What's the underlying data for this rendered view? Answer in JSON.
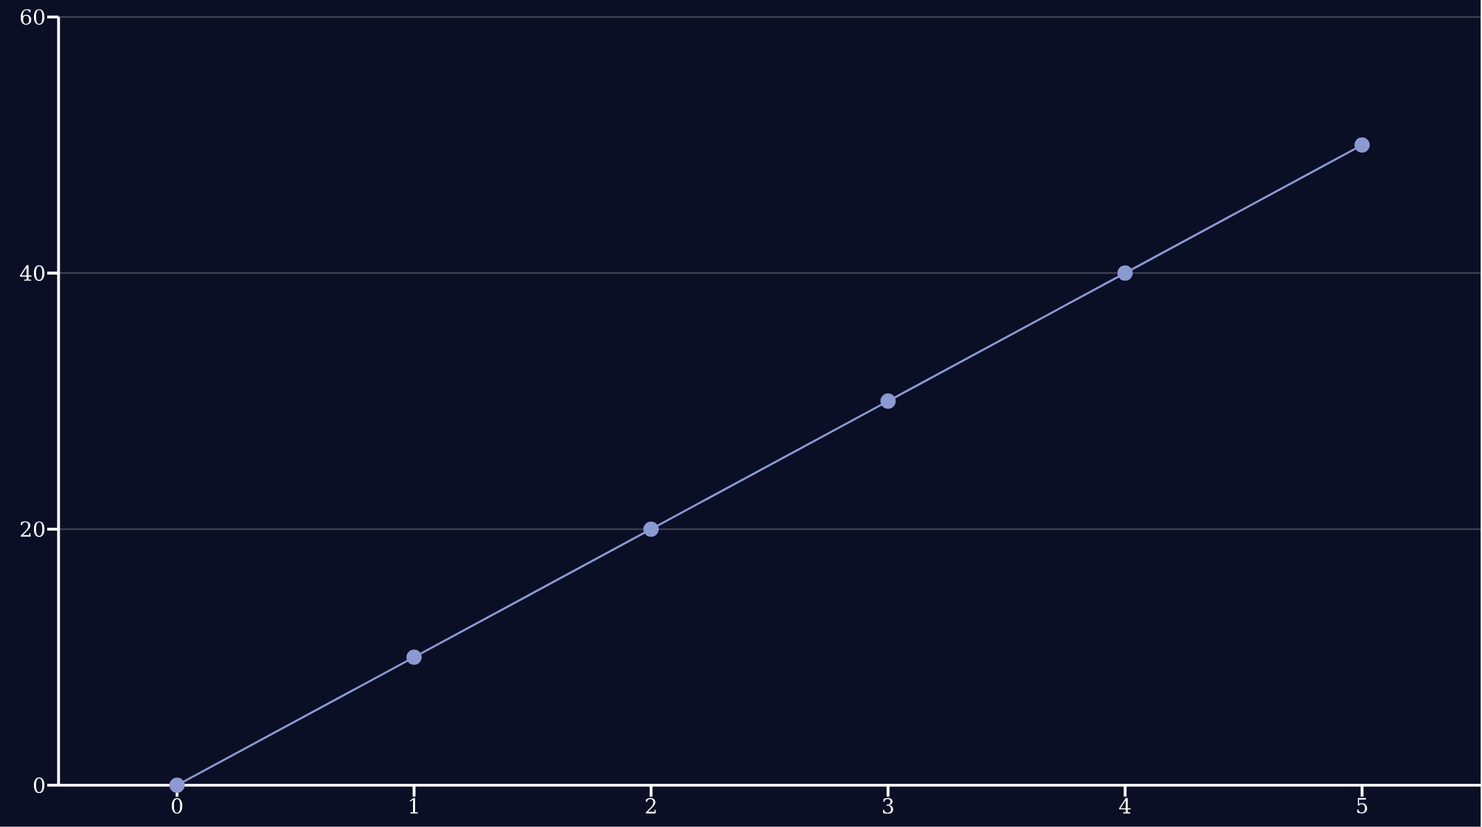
{
  "chart_data": {
    "type": "line",
    "x": [
      0,
      1,
      2,
      3,
      4,
      5
    ],
    "series": [
      {
        "color": "#8c9ad2",
        "values": [
          0,
          10,
          20,
          30,
          40,
          50
        ]
      }
    ],
    "xlim": [
      -0.5,
      5.5
    ],
    "ylim": [
      0,
      60
    ],
    "xticks": [
      0,
      1,
      2,
      3,
      4,
      5
    ],
    "yticks": [
      0,
      20,
      40,
      60
    ],
    "grid": "y",
    "marker": "circle"
  }
}
